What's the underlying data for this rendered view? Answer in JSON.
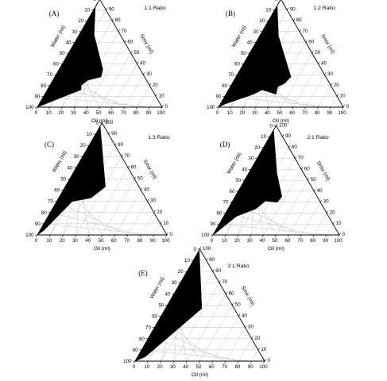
{
  "chart_data": [
    {
      "type": "ternary",
      "panel_label": "(A)",
      "ratio_label": "1:1 Ratio",
      "axes": {
        "bottom": "Oil (ml)",
        "left": "Water (ml)",
        "right": "Smix (ml)"
      },
      "bottom_ticks": [
        "0",
        "10",
        "20",
        "30",
        "40",
        "50",
        "60",
        "70",
        "80",
        "90",
        "100"
      ],
      "left_ticks": [
        "100",
        "90",
        "80",
        "70",
        "60",
        "50",
        "40",
        "30",
        "20",
        "10",
        "0"
      ],
      "right_ticks": [
        "0",
        "10",
        "20",
        "30",
        "40",
        "50",
        "60",
        "70",
        "80",
        "90",
        "100"
      ],
      "region": [
        [
          0,
          0
        ],
        [
          0,
          7
        ],
        [
          12,
          21
        ],
        [
          35,
          30
        ],
        [
          37,
          35
        ],
        [
          28,
          47
        ],
        [
          25,
          55
        ],
        [
          27,
          57
        ],
        [
          20,
          68
        ],
        [
          5,
          92
        ],
        [
          0,
          100
        ]
      ]
    },
    {
      "type": "ternary",
      "panel_label": "(B)",
      "ratio_label": "1:2 Ratio",
      "axes": {
        "bottom": "Oil (ml)",
        "left": "Water (ml)",
        "right": "Smix (ml)"
      },
      "bottom_ticks": [
        "0",
        "10",
        "20",
        "30",
        "40",
        "50",
        "60",
        "70",
        "80",
        "90",
        "100"
      ],
      "left_ticks": [
        "100",
        "90",
        "80",
        "70",
        "60",
        "50",
        "40",
        "30",
        "20",
        "10",
        "0"
      ],
      "right_ticks": [
        "0",
        "10",
        "20",
        "30",
        "40",
        "50",
        "60",
        "70",
        "80",
        "90",
        "100"
      ],
      "region": [
        [
          0,
          0
        ],
        [
          0,
          6
        ],
        [
          15,
          19
        ],
        [
          44,
          28
        ],
        [
          42,
          36
        ],
        [
          38,
          43
        ],
        [
          40,
          48
        ],
        [
          27,
          57
        ],
        [
          22,
          66
        ],
        [
          4,
          93
        ],
        [
          0,
          100
        ]
      ]
    },
    {
      "type": "ternary",
      "panel_label": "(C)",
      "ratio_label": "1:3 Ratio",
      "axes": {
        "bottom": "Oil (ml)",
        "left": "Water (ml)",
        "right": "Smix (ml)"
      },
      "bottom_ticks": [
        "0",
        "10",
        "20",
        "30",
        "40",
        "50",
        "60",
        "70",
        "80",
        "90",
        "100"
      ],
      "left_ticks": [
        "100",
        "90",
        "80",
        "70",
        "60",
        "50",
        "40",
        "30",
        "20",
        "10",
        "0"
      ],
      "right_ticks": [
        "0",
        "10",
        "20",
        "30",
        "40",
        "50",
        "60",
        "70",
        "80",
        "90",
        "100"
      ],
      "region": [
        [
          0,
          0
        ],
        [
          0,
          3
        ],
        [
          31,
          26
        ],
        [
          25,
          42
        ],
        [
          12,
          58
        ],
        [
          3,
          93
        ],
        [
          0,
          100
        ]
      ]
    },
    {
      "type": "ternary",
      "panel_label": "(D)",
      "ratio_label": "2:1 Ratio",
      "axes": {
        "bottom": "Oil (ml)",
        "left": "Water (ml)",
        "right": "Smix (ml)"
      },
      "bottom_ticks": [
        "0",
        "10",
        "20",
        "30",
        "40",
        "50",
        "60",
        "70",
        "80",
        "90",
        "100"
      ],
      "left_ticks": [
        "100",
        "90",
        "80",
        "70",
        "60",
        "50",
        "40",
        "30",
        "20",
        "10",
        "0"
      ],
      "right_ticks": [
        "0",
        "10",
        "20",
        "30",
        "40",
        "50",
        "60",
        "70",
        "80",
        "90",
        "100"
      ],
      "region": [
        [
          0,
          0
        ],
        [
          0,
          4
        ],
        [
          22,
          21
        ],
        [
          37,
          28
        ],
        [
          36,
          34
        ],
        [
          26,
          43
        ],
        [
          22,
          54
        ],
        [
          10,
          73
        ],
        [
          2,
          95
        ],
        [
          0,
          100
        ]
      ]
    },
    {
      "type": "ternary",
      "panel_label": "(E)",
      "ratio_label": "3:1 Ratio",
      "axes": {
        "bottom": "Oil (ml)",
        "left": "Water (ml)",
        "right": "Smix (ml)"
      },
      "bottom_ticks": [
        "0",
        "10",
        "20",
        "30",
        "40",
        "50",
        "60",
        "70",
        "80",
        "90",
        "100"
      ],
      "left_ticks": [
        "100",
        "90",
        "80",
        "70",
        "60",
        "50",
        "40",
        "30",
        "20",
        "10",
        "0"
      ],
      "right_ticks": [
        "0",
        "10",
        "20",
        "30",
        "40",
        "50",
        "60",
        "70",
        "80",
        "90",
        "100"
      ],
      "region": [
        [
          0,
          0
        ],
        [
          0,
          1
        ],
        [
          28,
          25
        ],
        [
          6,
          90
        ],
        [
          0,
          100
        ]
      ]
    }
  ]
}
